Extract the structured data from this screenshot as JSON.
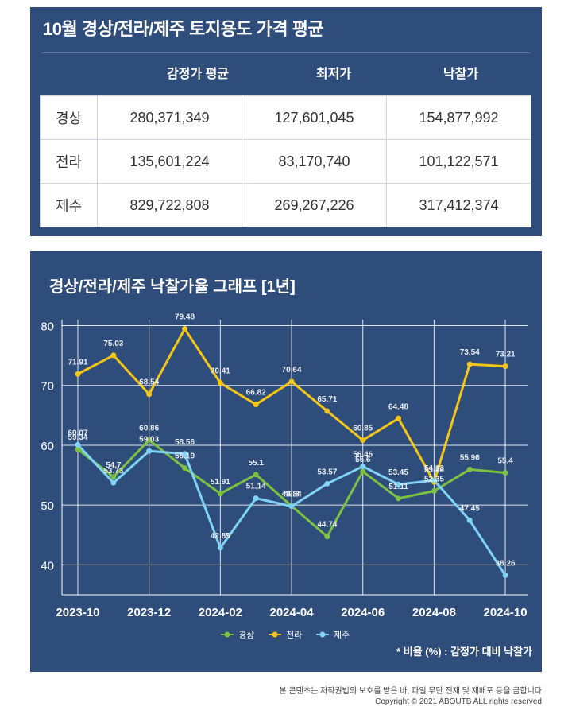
{
  "table": {
    "title": "10월 경상/전라/제주 토지용도 가격 평균",
    "headers": [
      "감정가 평균",
      "최저가",
      "낙찰가"
    ],
    "rows": [
      {
        "region": "경상",
        "values": [
          "280,371,349",
          "127,601,045",
          "154,877,992"
        ]
      },
      {
        "region": "전라",
        "values": [
          "135,601,224",
          "83,170,740",
          "101,122,571"
        ]
      },
      {
        "region": "제주",
        "values": [
          "829,722,808",
          "269,267,226",
          "317,412,374"
        ]
      }
    ]
  },
  "chart_title": "경상/전라/제주 낙찰가율 그래프 [1년]",
  "note": "* 비율 (%) : 감정가 대비 낙찰가",
  "footer": {
    "line1": "본 콘텐츠는 저작권법의 보호를 받은 바, 파일 무단 전재 및 재배포 등을 금합니다",
    "line2": "Copyright © 2021 ABOUTB ALL rights reserved"
  },
  "chart_data": {
    "type": "line",
    "x": [
      "2023-10",
      "2023-11",
      "2023-12",
      "2024-01",
      "2024-02",
      "2024-03",
      "2024-04",
      "2024-05",
      "2024-06",
      "2024-07",
      "2024-08",
      "2024-09",
      "2024-10"
    ],
    "x_tick_labels": [
      "2023-10",
      "2023-12",
      "2024-02",
      "2024-04",
      "2024-06",
      "2024-08",
      "2024-10"
    ],
    "ylim": [
      35,
      81
    ],
    "yticks": [
      40,
      50,
      60,
      70,
      80
    ],
    "grid": true,
    "legend": "bottom-center",
    "series": [
      {
        "name": "경상",
        "color": "#7cc242",
        "values": [
          59.34,
          54.7,
          60.86,
          56.19,
          51.91,
          55.1,
          49.84,
          44.74,
          55.6,
          51.11,
          52.35,
          55.96,
          55.4
        ]
      },
      {
        "name": "전라",
        "color": "#f5c518",
        "values": [
          71.91,
          75.03,
          68.54,
          79.48,
          70.41,
          66.82,
          70.64,
          65.71,
          60.85,
          64.48,
          53.86,
          73.54,
          73.21
        ]
      },
      {
        "name": "제주",
        "color": "#7fd3f7",
        "values": [
          60.07,
          53.73,
          59.03,
          58.56,
          42.85,
          51.14,
          49.8,
          53.57,
          56.46,
          53.45,
          54.13,
          47.45,
          38.26
        ]
      }
    ]
  }
}
